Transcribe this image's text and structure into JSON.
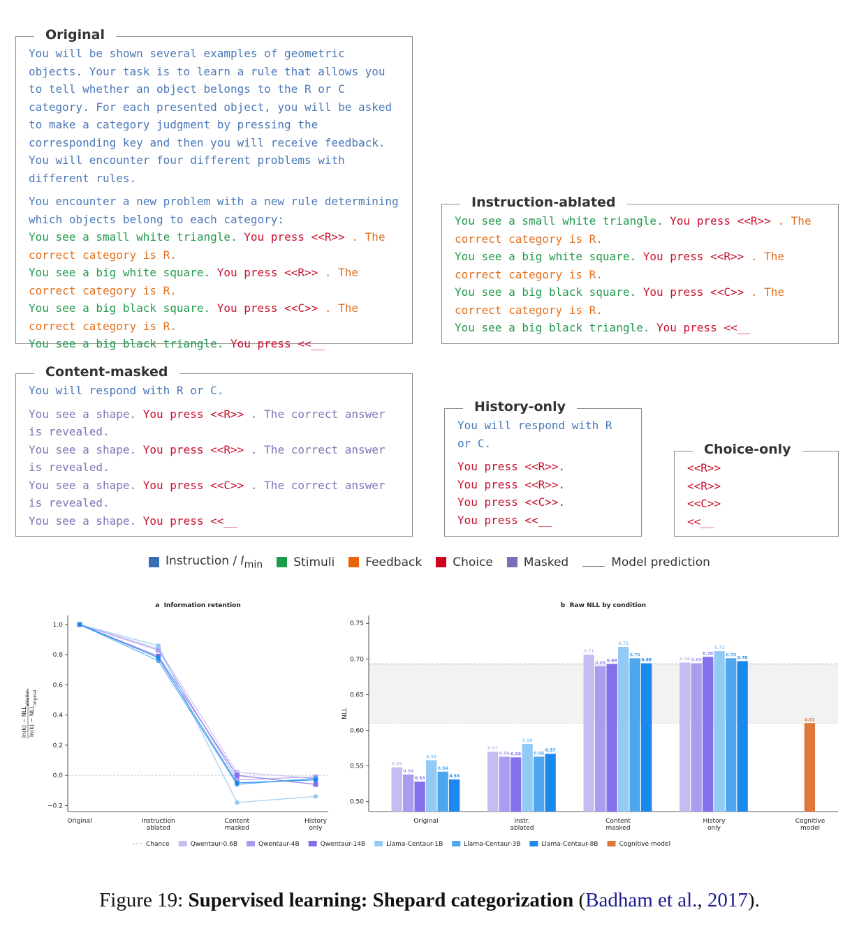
{
  "prompts": [
    {
      "title": "Original",
      "paragraphs": [
        [
          [
            {
              "text": "You will be shown several examples of geometric objects. Your task is to learn a rule that allows you to tell whether an object belongs to the R or C category. For each presented object, you will be asked to make a category judgment by pressing the corresponding key and then you will receive feedback. You will encounter four different problems with different rules.",
              "color": "#4a78b8"
            }
          ]
        ],
        [
          [
            {
              "text": "You encounter a new problem with a new rule determining which objects belong to each category:",
              "color": "#4a78b8"
            }
          ],
          [
            {
              "text": "You see a small white triangle.",
              "color": "#229a4c"
            },
            {
              "text": "You press <<R>>",
              "color": "#c8102e"
            },
            {
              "text": ". The correct category is R.",
              "color": "#e2701e"
            }
          ],
          [
            {
              "text": "You see a big white square.",
              "color": "#229a4c"
            },
            {
              "text": "You press <<R>>",
              "color": "#c8102e"
            },
            {
              "text": ". The correct category is R.",
              "color": "#e2701e"
            }
          ],
          [
            {
              "text": "You see a big black square.",
              "color": "#229a4c"
            },
            {
              "text": "You press <<C>>",
              "color": "#c8102e"
            },
            {
              "text": ". The correct category is R.",
              "color": "#e2701e"
            }
          ],
          [
            {
              "text": "You see a big black triangle.",
              "color": "#229a4c"
            },
            {
              "text": "You press <<__",
              "color": "#c8102e"
            }
          ]
        ]
      ]
    },
    {
      "title": "Instruction-ablated",
      "paragraphs": [
        [
          [
            {
              "text": "You see a small white triangle.",
              "color": "#229a4c"
            },
            {
              "text": "You press <<R>>",
              "color": "#c8102e"
            },
            {
              "text": ". The correct category is R.",
              "color": "#e2701e"
            }
          ],
          [
            {
              "text": "You see a big white square.",
              "color": "#229a4c"
            },
            {
              "text": "You press <<R>>",
              "color": "#c8102e"
            },
            {
              "text": ". The correct category is R.",
              "color": "#e2701e"
            }
          ],
          [
            {
              "text": "You see a big black square.",
              "color": "#229a4c"
            },
            {
              "text": "You press <<C>>",
              "color": "#c8102e"
            },
            {
              "text": ". The correct category is R.",
              "color": "#e2701e"
            }
          ],
          [
            {
              "text": "You see a big black triangle.",
              "color": "#229a4c"
            },
            {
              "text": "You press <<__",
              "color": "#c8102e"
            }
          ]
        ]
      ]
    },
    {
      "title": "Content-masked",
      "paragraphs": [
        [
          [
            {
              "text": "You will respond with R or C.",
              "color": "#4a78b8"
            }
          ]
        ],
        [
          [
            {
              "text": "You see a shape.",
              "color": "#8272b6"
            },
            {
              "text": "You press <<R>>",
              "color": "#c8102e"
            },
            {
              "text": ". The correct answer is revealed.",
              "color": "#8272b6"
            }
          ],
          [
            {
              "text": "You see a shape.",
              "color": "#8272b6"
            },
            {
              "text": "You press <<R>>",
              "color": "#c8102e"
            },
            {
              "text": ". The correct answer is revealed.",
              "color": "#8272b6"
            }
          ],
          [
            {
              "text": "You see a shape.",
              "color": "#8272b6"
            },
            {
              "text": "You press <<C>>",
              "color": "#c8102e"
            },
            {
              "text": ". The correct answer is revealed.",
              "color": "#8272b6"
            }
          ],
          [
            {
              "text": "You see a shape.",
              "color": "#8272b6"
            },
            {
              "text": "You press <<__",
              "color": "#c8102e"
            }
          ]
        ]
      ]
    },
    {
      "title": "History-only",
      "paragraphs": [
        [
          [
            {
              "text": "You will respond with R or C.",
              "color": "#4a78b8"
            }
          ]
        ],
        [
          [
            {
              "text": "You press <<R>>.",
              "color": "#c8102e"
            }
          ],
          [
            {
              "text": "You press <<R>>.",
              "color": "#c8102e"
            }
          ],
          [
            {
              "text": "You press <<C>>.",
              "color": "#c8102e"
            }
          ],
          [
            {
              "text": "You press <<__",
              "color": "#c8102e"
            }
          ]
        ]
      ]
    },
    {
      "title": "Choice-only",
      "paragraphs": [
        [
          [
            {
              "text": "<<R>>",
              "color": "#c8102e"
            }
          ],
          [
            {
              "text": "<<R>>",
              "color": "#c8102e"
            }
          ],
          [
            {
              "text": "<<C>>",
              "color": "#c8102e"
            }
          ],
          [
            {
              "text": "<<__",
              "color": "#c8102e"
            }
          ]
        ]
      ]
    }
  ],
  "legend": [
    {
      "text": "Instruction / ",
      "math": "I",
      "sub": "min",
      "color": "#3b6db3"
    },
    {
      "text": "Stimuli",
      "color": "#1b9e4b"
    },
    {
      "text": "Feedback",
      "color": "#e8650a"
    },
    {
      "text": "Choice",
      "color": "#d0021b"
    },
    {
      "text": "Masked",
      "color": "#7b6db8"
    },
    {
      "text": "Model prediction"
    }
  ],
  "chart_data": [
    {
      "type": "line",
      "title": "a  Information retention",
      "ylabel": {
        "numerator": "ln(k) − NLL",
        "numerator_sub": "ablation",
        "denominator": "ln(k) − NLL",
        "denominator_sub": "original"
      },
      "categories": [
        [
          "Original"
        ],
        [
          "Instruction",
          "ablated"
        ],
        [
          "Content",
          "masked"
        ],
        [
          "History",
          "only"
        ]
      ],
      "series": [
        {
          "color": "#c5bdf2",
          "marker": "square",
          "values": [
            1.0,
            0.84,
            0.02,
            -0.02
          ]
        },
        {
          "color": "#a99df0",
          "marker": "square",
          "values": [
            1.0,
            0.83,
            -0.03,
            -0.01
          ]
        },
        {
          "color": "#8470ea",
          "marker": "square",
          "values": [
            1.0,
            0.79,
            0.0,
            -0.06
          ]
        },
        {
          "color": "#93caf5",
          "marker": "circle",
          "values": [
            1.0,
            0.86,
            -0.18,
            -0.14
          ]
        },
        {
          "color": "#4ea6ef",
          "marker": "circle",
          "values": [
            1.0,
            0.76,
            -0.06,
            -0.02
          ]
        },
        {
          "color": "#1b88f0",
          "marker": "circle",
          "values": [
            1.0,
            0.78,
            -0.05,
            -0.03
          ]
        }
      ],
      "ylim": [
        -0.24,
        1.06
      ],
      "yticks": [
        {
          "value": -0.2,
          "label": "−0.2"
        },
        {
          "value": 0,
          "label": "0.0"
        },
        0.2,
        0.4,
        0.6,
        0.8,
        {
          "value": 1,
          "label": "1.0"
        }
      ]
    },
    {
      "type": "bar",
      "title": "b  Raw NLL by condition",
      "ylabel": "NLL",
      "categories": [
        [
          "Original"
        ],
        [
          "Instr.",
          "ablated"
        ],
        [
          "Content",
          "masked"
        ],
        [
          "History",
          "only"
        ],
        [
          "Cognitive",
          "model"
        ]
      ],
      "series": [
        {
          "name": "Qwentaur-0.6B",
          "color": "#c5bdf2",
          "values": [
            0.548,
            0.57,
            0.706,
            0.695,
            null
          ],
          "value_labels": [
            "0.55",
            "0.57",
            "0.71",
            "0.70",
            null
          ]
        },
        {
          "name": "Qwentaur-4B",
          "color": "#a99df0",
          "values": [
            0.538,
            0.563,
            0.69,
            0.694,
            null
          ],
          "value_labels": [
            "0.54",
            "0.56",
            "0.69",
            "0.69",
            null
          ]
        },
        {
          "name": "Qwentaur-14B",
          "color": "#8470ea",
          "values": [
            0.528,
            0.562,
            0.693,
            0.703,
            null
          ],
          "value_labels": [
            "0.53",
            "0.56",
            "0.69",
            "0.70",
            null
          ]
        },
        {
          "name": "Llama-Centaur-1B",
          "color": "#93caf5",
          "values": [
            0.558,
            0.581,
            0.717,
            0.711,
            null
          ],
          "value_labels": [
            "0.56",
            "0.58",
            "0.72",
            "0.71",
            null
          ]
        },
        {
          "name": "Llama-Centaur-3B",
          "color": "#4ea6ef",
          "values": [
            0.542,
            0.563,
            0.701,
            0.701,
            null
          ],
          "value_labels": [
            "0.54",
            "0.56",
            "0.70",
            "0.70",
            null
          ]
        },
        {
          "name": "Llama-Centaur-8B",
          "color": "#1b88f0",
          "values": [
            0.531,
            0.567,
            0.694,
            0.697,
            null
          ],
          "value_labels": [
            "0.53",
            "0.57",
            "0.69",
            "0.70",
            null
          ]
        },
        {
          "name": "Cognitive model",
          "color": "#e0773a",
          "values": [
            null,
            null,
            null,
            null,
            0.61
          ],
          "value_labels": [
            null,
            null,
            null,
            null,
            "0.61"
          ]
        }
      ],
      "chance": 0.693,
      "chance_label": "Chance",
      "chance_color": "#aaaaaa",
      "ylim": [
        0.486,
        0.761
      ],
      "yticks": [
        {
          "value": 0.5,
          "label": "0.50"
        },
        0.55,
        {
          "value": 0.6,
          "label": "0.60"
        },
        0.65,
        {
          "value": 0.7,
          "label": "0.70"
        },
        0.75
      ]
    }
  ],
  "caption": [
    {
      "text": "Figure 19: "
    },
    {
      "text": "Supervised learning: Shepard categorization",
      "bold": true
    },
    {
      "text": " ("
    },
    {
      "text": "Badham et al.",
      "link": true
    },
    {
      "text": ", "
    },
    {
      "text": "2017",
      "link": true
    },
    {
      "text": ")."
    }
  ]
}
